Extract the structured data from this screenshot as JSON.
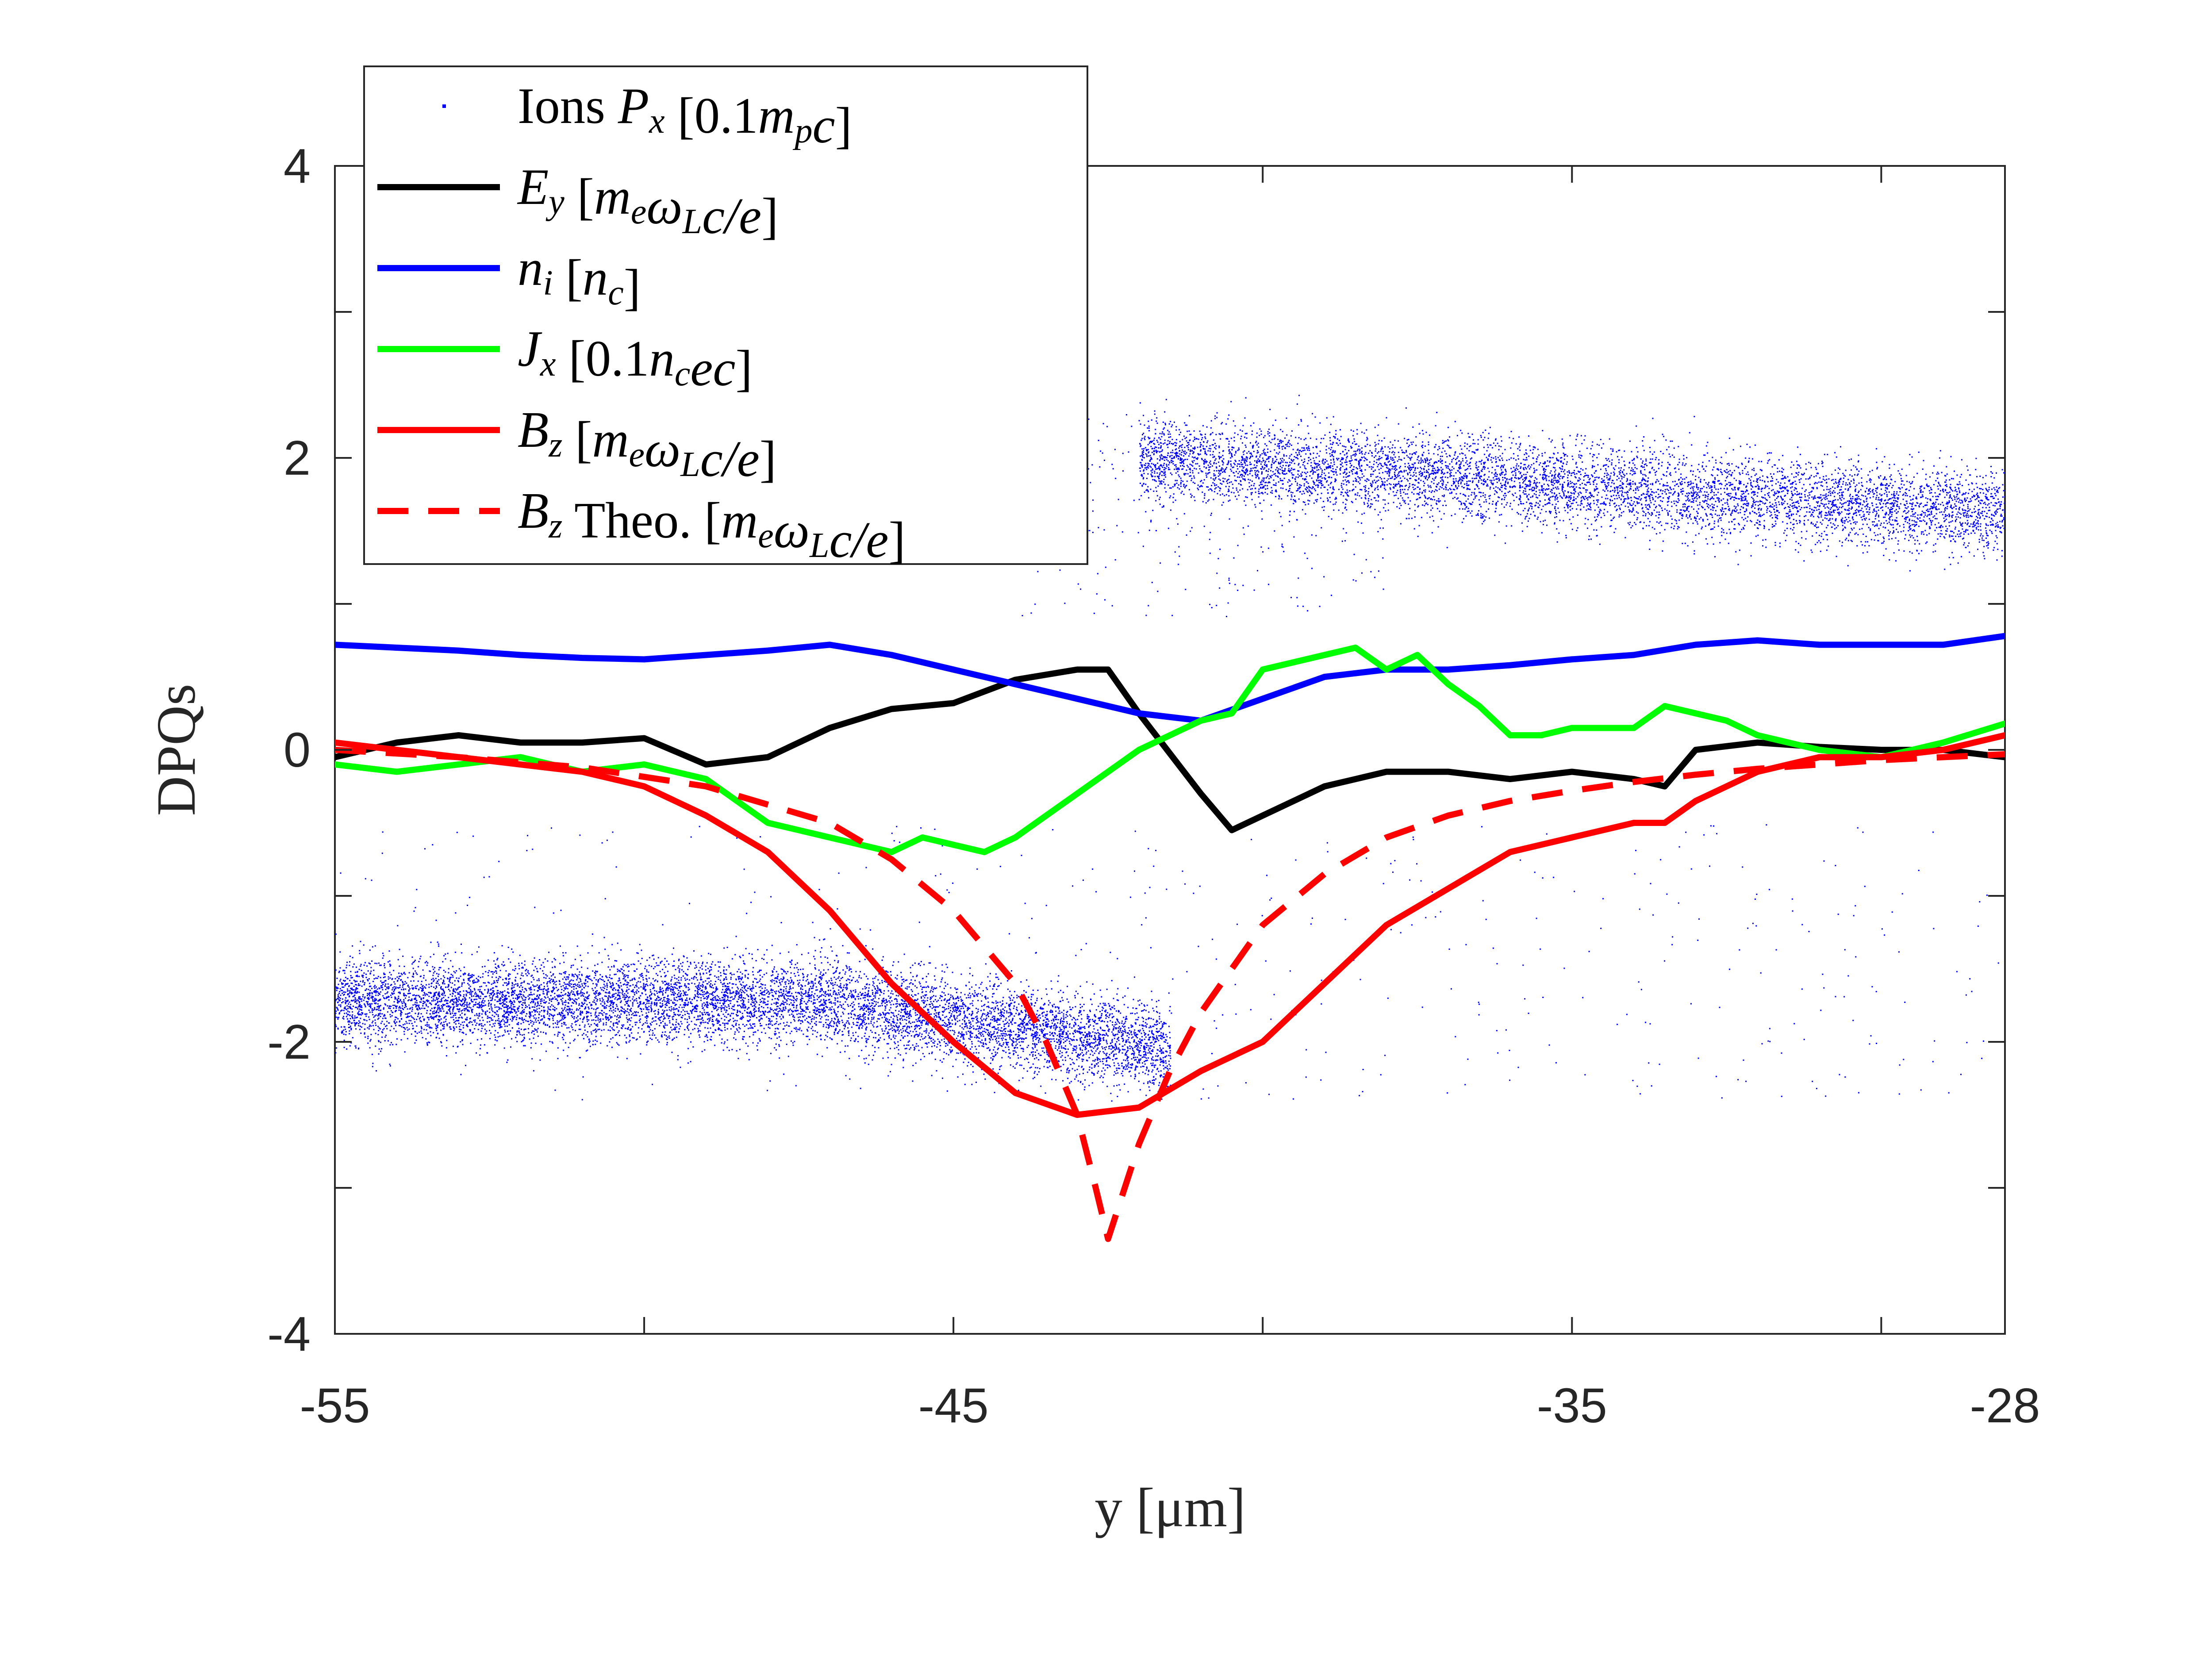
{
  "chart_data": {
    "type": "line",
    "xlabel": "y [μm]",
    "ylabel": "DPQs",
    "xlim": [
      -55,
      -28
    ],
    "ylim": [
      -4,
      4
    ],
    "xticks": [
      -55,
      -45,
      -35,
      -28
    ],
    "yticks": [
      -4,
      -2,
      0,
      2,
      4
    ],
    "grid": false,
    "legend_position": "top-left",
    "legend": [
      {
        "id": "ions",
        "label": "Ions P_x [0.1m_pc]",
        "style": "dots",
        "color": "#0000ff"
      },
      {
        "id": "ey",
        "label": "E_y [m_eω_Lc/e]",
        "style": "solid",
        "color": "#000000"
      },
      {
        "id": "ni",
        "label": "n_i [n_c]",
        "style": "solid",
        "color": "#0000ff"
      },
      {
        "id": "jx",
        "label": "J_x [0.1n_cec]",
        "style": "solid",
        "color": "#00ff00"
      },
      {
        "id": "bz",
        "label": "B_z [m_eω_Lc/e]",
        "style": "solid",
        "color": "#ff0000"
      },
      {
        "id": "bz_theo",
        "label": "B_z Theo. [m_eω_Lc/e]",
        "style": "dashed",
        "color": "#ff0000"
      }
    ],
    "series": [
      {
        "id": "ey",
        "name": "E_y",
        "color": "#000000",
        "x": [
          -55,
          -54,
          -53,
          -52,
          -51,
          -50,
          -49,
          -48,
          -47,
          -46,
          -45,
          -44,
          -43,
          -42.5,
          -42,
          -41,
          -40.5,
          -40,
          -39,
          -38,
          -37,
          -36,
          -35,
          -34,
          -33.5,
          -33,
          -32,
          -31,
          -30,
          -29,
          -28
        ],
        "y": [
          -0.05,
          0.05,
          0.1,
          0.05,
          0.05,
          0.08,
          -0.1,
          -0.05,
          0.15,
          0.28,
          0.32,
          0.48,
          0.55,
          0.55,
          0.25,
          -0.3,
          -0.55,
          -0.45,
          -0.25,
          -0.15,
          -0.15,
          -0.2,
          -0.15,
          -0.2,
          -0.25,
          0.0,
          0.05,
          0.02,
          0.0,
          0.0,
          -0.05
        ]
      },
      {
        "id": "ni",
        "name": "n_i",
        "color": "#0000ff",
        "x": [
          -55,
          -54,
          -53,
          -52,
          -51,
          -50,
          -49,
          -48,
          -47,
          -46,
          -45,
          -44,
          -43,
          -42,
          -41,
          -40,
          -39,
          -38,
          -37,
          -36,
          -35,
          -34,
          -33,
          -32,
          -31,
          -30,
          -29,
          -28
        ],
        "y": [
          0.72,
          0.7,
          0.68,
          0.65,
          0.63,
          0.62,
          0.65,
          0.68,
          0.72,
          0.65,
          0.55,
          0.45,
          0.35,
          0.25,
          0.2,
          0.35,
          0.5,
          0.55,
          0.55,
          0.58,
          0.62,
          0.65,
          0.72,
          0.75,
          0.72,
          0.72,
          0.72,
          0.78
        ]
      },
      {
        "id": "jx",
        "name": "J_x",
        "color": "#00ff00",
        "x": [
          -55,
          -54,
          -53,
          -52,
          -51,
          -50,
          -49,
          -48,
          -47,
          -46,
          -45.5,
          -45,
          -44.5,
          -44,
          -43,
          -42,
          -41,
          -40.5,
          -40,
          -39.5,
          -39,
          -38.5,
          -38,
          -37.5,
          -37,
          -36.5,
          -36,
          -35.5,
          -35,
          -34,
          -33.5,
          -33,
          -32.5,
          -32,
          -31.5,
          -31,
          -30,
          -29,
          -28
        ],
        "y": [
          -0.1,
          -0.15,
          -0.1,
          -0.05,
          -0.15,
          -0.1,
          -0.2,
          -0.5,
          -0.6,
          -0.7,
          -0.6,
          -0.65,
          -0.7,
          -0.6,
          -0.3,
          0.0,
          0.2,
          0.25,
          0.55,
          0.6,
          0.65,
          0.7,
          0.55,
          0.65,
          0.45,
          0.3,
          0.1,
          0.1,
          0.15,
          0.15,
          0.3,
          0.25,
          0.2,
          0.1,
          0.05,
          0.0,
          -0.05,
          0.05,
          0.18
        ]
      },
      {
        "id": "bz",
        "name": "B_z",
        "color": "#ff0000",
        "x": [
          -55,
          -54,
          -53,
          -52,
          -51,
          -50,
          -49,
          -48,
          -47,
          -46,
          -45,
          -44,
          -43,
          -42,
          -41,
          -40,
          -39,
          -38,
          -37,
          -36,
          -35,
          -34,
          -33.5,
          -33,
          -32,
          -31,
          -30,
          -29,
          -28
        ],
        "y": [
          0.05,
          0.0,
          -0.05,
          -0.1,
          -0.15,
          -0.25,
          -0.45,
          -0.7,
          -1.1,
          -1.6,
          -2.0,
          -2.35,
          -2.5,
          -2.45,
          -2.2,
          -2.0,
          -1.6,
          -1.2,
          -0.95,
          -0.7,
          -0.6,
          -0.5,
          -0.5,
          -0.35,
          -0.15,
          -0.05,
          -0.05,
          0.0,
          0.1
        ]
      },
      {
        "id": "bz_theo",
        "name": "B_z Theo.",
        "color": "#ff0000",
        "dashed": true,
        "x": [
          -55,
          -53,
          -51,
          -49,
          -47,
          -46,
          -45,
          -44,
          -43.5,
          -43,
          -42.7,
          -42.5,
          -42,
          -41.5,
          -41,
          -40,
          -39,
          -38,
          -37,
          -36,
          -35,
          -34,
          -33,
          -32,
          -31,
          -30,
          -28
        ],
        "y": [
          0.0,
          -0.05,
          -0.12,
          -0.25,
          -0.5,
          -0.75,
          -1.1,
          -1.6,
          -2.0,
          -2.5,
          -3.0,
          -3.35,
          -2.7,
          -2.2,
          -1.8,
          -1.2,
          -0.85,
          -0.6,
          -0.45,
          -0.35,
          -0.28,
          -0.22,
          -0.17,
          -0.13,
          -0.1,
          -0.07,
          -0.03
        ]
      }
    ]
  }
}
